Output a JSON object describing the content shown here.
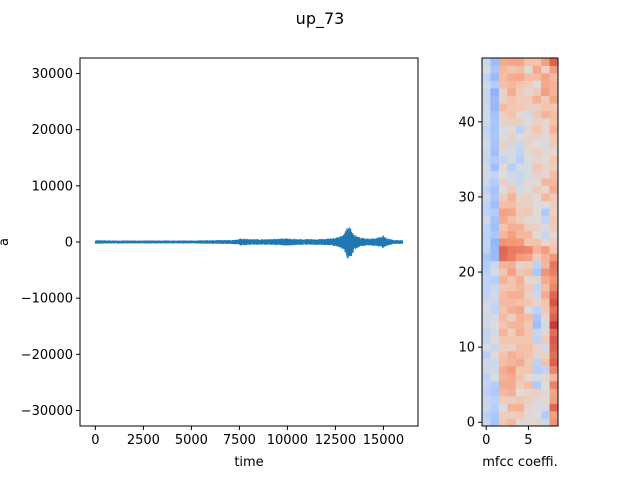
{
  "figure": {
    "title": "up_73"
  },
  "chart_data": [
    {
      "type": "line",
      "title": "",
      "xlabel": "time",
      "ylabel": "a",
      "xlim": [
        -800,
        16800
      ],
      "ylim": [
        -32768,
        32767
      ],
      "xticks": [
        0,
        2500,
        5000,
        7500,
        10000,
        12500,
        15000
      ],
      "yticks": [
        -30000,
        -20000,
        -10000,
        0,
        10000,
        20000,
        30000
      ],
      "xtick_labels": [
        "0",
        "2500",
        "5000",
        "7500",
        "10000",
        "12500",
        "15000"
      ],
      "ytick_labels": [
        "−30000",
        "−20000",
        "−10000",
        "0",
        "10000",
        "20000",
        "30000"
      ],
      "grid": false,
      "series": [
        {
          "color": "#1f77b4",
          "n_samples": 16000,
          "envelope": [
            {
              "x": 0,
              "max": 250,
              "min": -250
            },
            {
              "x": 1000,
              "max": 200,
              "min": -200
            },
            {
              "x": 2000,
              "max": 200,
              "min": -200
            },
            {
              "x": 3000,
              "max": 200,
              "min": -200
            },
            {
              "x": 4000,
              "max": 200,
              "min": -200
            },
            {
              "x": 5000,
              "max": 200,
              "min": -200
            },
            {
              "x": 6000,
              "max": 250,
              "min": -250
            },
            {
              "x": 7000,
              "max": 300,
              "min": -300
            },
            {
              "x": 7400,
              "max": 350,
              "min": -350
            },
            {
              "x": 7600,
              "max": 600,
              "min": -600
            },
            {
              "x": 8200,
              "max": 450,
              "min": -450
            },
            {
              "x": 9000,
              "max": 450,
              "min": -450
            },
            {
              "x": 10000,
              "max": 600,
              "min": -600
            },
            {
              "x": 10600,
              "max": 450,
              "min": -450
            },
            {
              "x": 11000,
              "max": 450,
              "min": -450
            },
            {
              "x": 12000,
              "max": 500,
              "min": -500
            },
            {
              "x": 12500,
              "max": 700,
              "min": -700
            },
            {
              "x": 12800,
              "max": 1000,
              "min": -1000
            },
            {
              "x": 13000,
              "max": 1800,
              "min": -1800
            },
            {
              "x": 13150,
              "max": 2700,
              "min": -3200
            },
            {
              "x": 13300,
              "max": 2500,
              "min": -2800
            },
            {
              "x": 13500,
              "max": 1200,
              "min": -1300
            },
            {
              "x": 13800,
              "max": 700,
              "min": -700
            },
            {
              "x": 14200,
              "max": 600,
              "min": -600
            },
            {
              "x": 14700,
              "max": 700,
              "min": -700
            },
            {
              "x": 15000,
              "max": 1100,
              "min": -1100
            },
            {
              "x": 15200,
              "max": 600,
              "min": -600
            },
            {
              "x": 15500,
              "max": 300,
              "min": -300
            },
            {
              "x": 16000,
              "max": 250,
              "min": -250
            }
          ]
        }
      ]
    },
    {
      "type": "heatmap",
      "title": "",
      "xlabel": "mfcc coeffi.",
      "ylabel": "",
      "xlim": [
        -0.5,
        8.5
      ],
      "ylim": [
        -0.5,
        48.5
      ],
      "xticks": [
        0,
        5
      ],
      "yticks": [
        0,
        10,
        20,
        30,
        40
      ],
      "xtick_labels": [
        "0",
        "5"
      ],
      "ytick_labels": [
        "0",
        "10",
        "20",
        "30",
        "40"
      ],
      "colormap": "coolwarm",
      "vmin": -1,
      "vmax": 1,
      "n_rows": 49,
      "n_cols": 9,
      "values": [
        [
          -0.14,
          -0.35,
          0.24,
          0.33,
          0.05,
          0.06,
          0.1,
          -0.1,
          0.53
        ],
        [
          -0.25,
          -0.32,
          0.17,
          0.15,
          0.22,
          0.05,
          -0.01,
          -0.28,
          0.46
        ],
        [
          -0.12,
          -0.26,
          0.01,
          0.36,
          0.36,
          0.08,
          -0.03,
          -0.07,
          0.72
        ],
        [
          -0.14,
          -0.22,
          0.18,
          0.16,
          0.23,
          0.16,
          0.05,
          0.04,
          0.47
        ],
        [
          -0.23,
          -0.3,
          0.33,
          0.37,
          0.02,
          0.09,
          0.14,
          0.05,
          0.44
        ],
        [
          -0.16,
          -0.27,
          0.39,
          0.39,
          0.18,
          0.29,
          -0.3,
          0.0,
          0.6
        ],
        [
          -0.22,
          -0.02,
          0.35,
          0.39,
          0.26,
          0.04,
          -0.06,
          0.06,
          0.32
        ],
        [
          -0.09,
          -0.1,
          0.38,
          0.48,
          0.22,
          0.25,
          -0.26,
          -0.18,
          0.58
        ],
        [
          -0.08,
          -0.09,
          0.29,
          0.34,
          0.4,
          0.19,
          -0.2,
          0.27,
          0.74
        ],
        [
          -0.25,
          0.04,
          0.26,
          0.38,
          0.3,
          0.26,
          0.09,
          0.1,
          0.68
        ],
        [
          -0.04,
          -0.13,
          0.14,
          0.14,
          0.28,
          0.28,
          0.11,
          -0.07,
          0.74
        ],
        [
          -0.14,
          0.03,
          0.23,
          0.24,
          0.21,
          0.23,
          -0.21,
          0.19,
          0.77
        ],
        [
          -0.18,
          -0.08,
          0.35,
          0.14,
          0.38,
          0.23,
          -0.16,
          0.08,
          0.69
        ],
        [
          -0.08,
          0.02,
          0.24,
          0.34,
          0.34,
          0.19,
          -0.38,
          -0.08,
          0.86
        ],
        [
          -0.1,
          -0.05,
          0.31,
          0.13,
          0.36,
          0.3,
          -0.33,
          0.07,
          0.74
        ],
        [
          -0.07,
          -0.19,
          0.26,
          0.38,
          0.42,
          -0.03,
          -0.21,
          0.22,
          0.67
        ],
        [
          -0.09,
          -0.15,
          0.31,
          0.3,
          0.27,
          0.25,
          0.11,
          0.25,
          0.78
        ],
        [
          -0.18,
          -0.07,
          0.3,
          0.38,
          0.38,
          0.14,
          -0.09,
          0.39,
          0.72
        ],
        [
          -0.22,
          -0.11,
          0.23,
          0.25,
          0.32,
          0.21,
          -0.17,
          0.28,
          0.59
        ],
        [
          -0.2,
          -0.25,
          0.37,
          0.25,
          0.37,
          0.05,
          0.09,
          0.4,
          0.52
        ],
        [
          -0.24,
          -0.05,
          0.23,
          0.46,
          0.24,
          0.28,
          -0.32,
          0.52,
          0.61
        ],
        [
          -0.29,
          -0.12,
          0.36,
          0.37,
          0.09,
          0.16,
          -0.21,
          0.33,
          0.65
        ],
        [
          -0.33,
          -0.42,
          0.69,
          0.62,
          0.5,
          0.44,
          0.17,
          0.35,
          0.51
        ],
        [
          -0.21,
          -0.42,
          0.72,
          0.64,
          0.61,
          0.59,
          0.34,
          0.49,
          0.25
        ],
        [
          -0.18,
          -0.46,
          0.54,
          0.51,
          0.5,
          0.23,
          0.27,
          0.05,
          0.18
        ],
        [
          -0.23,
          -0.32,
          0.34,
          0.47,
          0.33,
          0.33,
          0.01,
          -0.15,
          0.04
        ],
        [
          -0.2,
          -0.38,
          0.24,
          0.38,
          0.36,
          0.15,
          0.11,
          -0.03,
          0.18
        ],
        [
          -0.11,
          -0.36,
          0.41,
          0.28,
          0.16,
          0.04,
          0.02,
          -0.18,
          0.23
        ],
        [
          -0.22,
          -0.28,
          0.46,
          0.42,
          0.19,
          0.24,
          0.04,
          -0.3,
          0.12
        ],
        [
          -0.22,
          -0.39,
          0.28,
          0.29,
          0.15,
          0.13,
          0.01,
          0.01,
          0.14
        ],
        [
          -0.1,
          -0.33,
          0.18,
          0.36,
          0.1,
          0.13,
          0.03,
          0.33,
          0.21
        ],
        [
          -0.23,
          -0.35,
          0.02,
          0.21,
          -0.06,
          0.03,
          0.17,
          0.07,
          0.4
        ],
        [
          -0.13,
          -0.28,
          0.15,
          -0.07,
          -0.12,
          0.04,
          0.03,
          0.32,
          0.32
        ],
        [
          -0.09,
          -0.17,
          0.0,
          -0.09,
          -0.14,
          -0.04,
          0.12,
          0.06,
          0.3
        ],
        [
          -0.08,
          -0.39,
          0.03,
          -0.26,
          -0.06,
          -0.04,
          0.23,
          0.1,
          0.15
        ],
        [
          -0.15,
          -0.29,
          -0.16,
          -0.05,
          -0.25,
          0.02,
          0.06,
          0.02,
          0.24
        ],
        [
          -0.12,
          -0.38,
          -0.05,
          -0.06,
          -0.17,
          0.06,
          0.16,
          0.07,
          0.05
        ],
        [
          -0.07,
          -0.35,
          0.14,
          -0.09,
          -0.15,
          0.09,
          0.0,
          -0.05,
          0.19
        ],
        [
          -0.11,
          -0.33,
          0.03,
          0.12,
          -0.01,
          0.09,
          0.09,
          0.05,
          0.21
        ],
        [
          -0.19,
          -0.34,
          -0.03,
          0.03,
          -0.23,
          0.1,
          0.25,
          0.06,
          0.36
        ],
        [
          -0.09,
          -0.33,
          0.11,
          0.16,
          0.14,
          -0.02,
          0.12,
          0.05,
          0.27
        ],
        [
          -0.12,
          -0.37,
          0.14,
          0.25,
          0.06,
          -0.07,
          0.19,
          0.35,
          0.3
        ],
        [
          -0.11,
          -0.44,
          0.31,
          0.24,
          0.22,
          0.15,
          0.13,
          0.24,
          0.23
        ],
        [
          -0.15,
          -0.42,
          0.09,
          0.26,
          0.17,
          0.19,
          0.37,
          0.2,
          0.43
        ],
        [
          -0.14,
          -0.49,
          0.12,
          0.39,
          0.18,
          0.06,
          0.21,
          0.47,
          0.36
        ],
        [
          -0.08,
          -0.27,
          0.28,
          0.32,
          0.25,
          0.18,
          0.0,
          0.41,
          0.37
        ],
        [
          -0.2,
          -0.42,
          0.3,
          0.39,
          0.42,
          0.3,
          0.3,
          0.44,
          0.3
        ],
        [
          -0.04,
          -0.33,
          0.33,
          0.23,
          0.3,
          0.06,
          0.42,
          0.13,
          0.48
        ],
        [
          -0.11,
          -0.41,
          0.39,
          0.42,
          0.44,
          0.27,
          0.26,
          0.47,
          0.74
        ]
      ]
    }
  ]
}
